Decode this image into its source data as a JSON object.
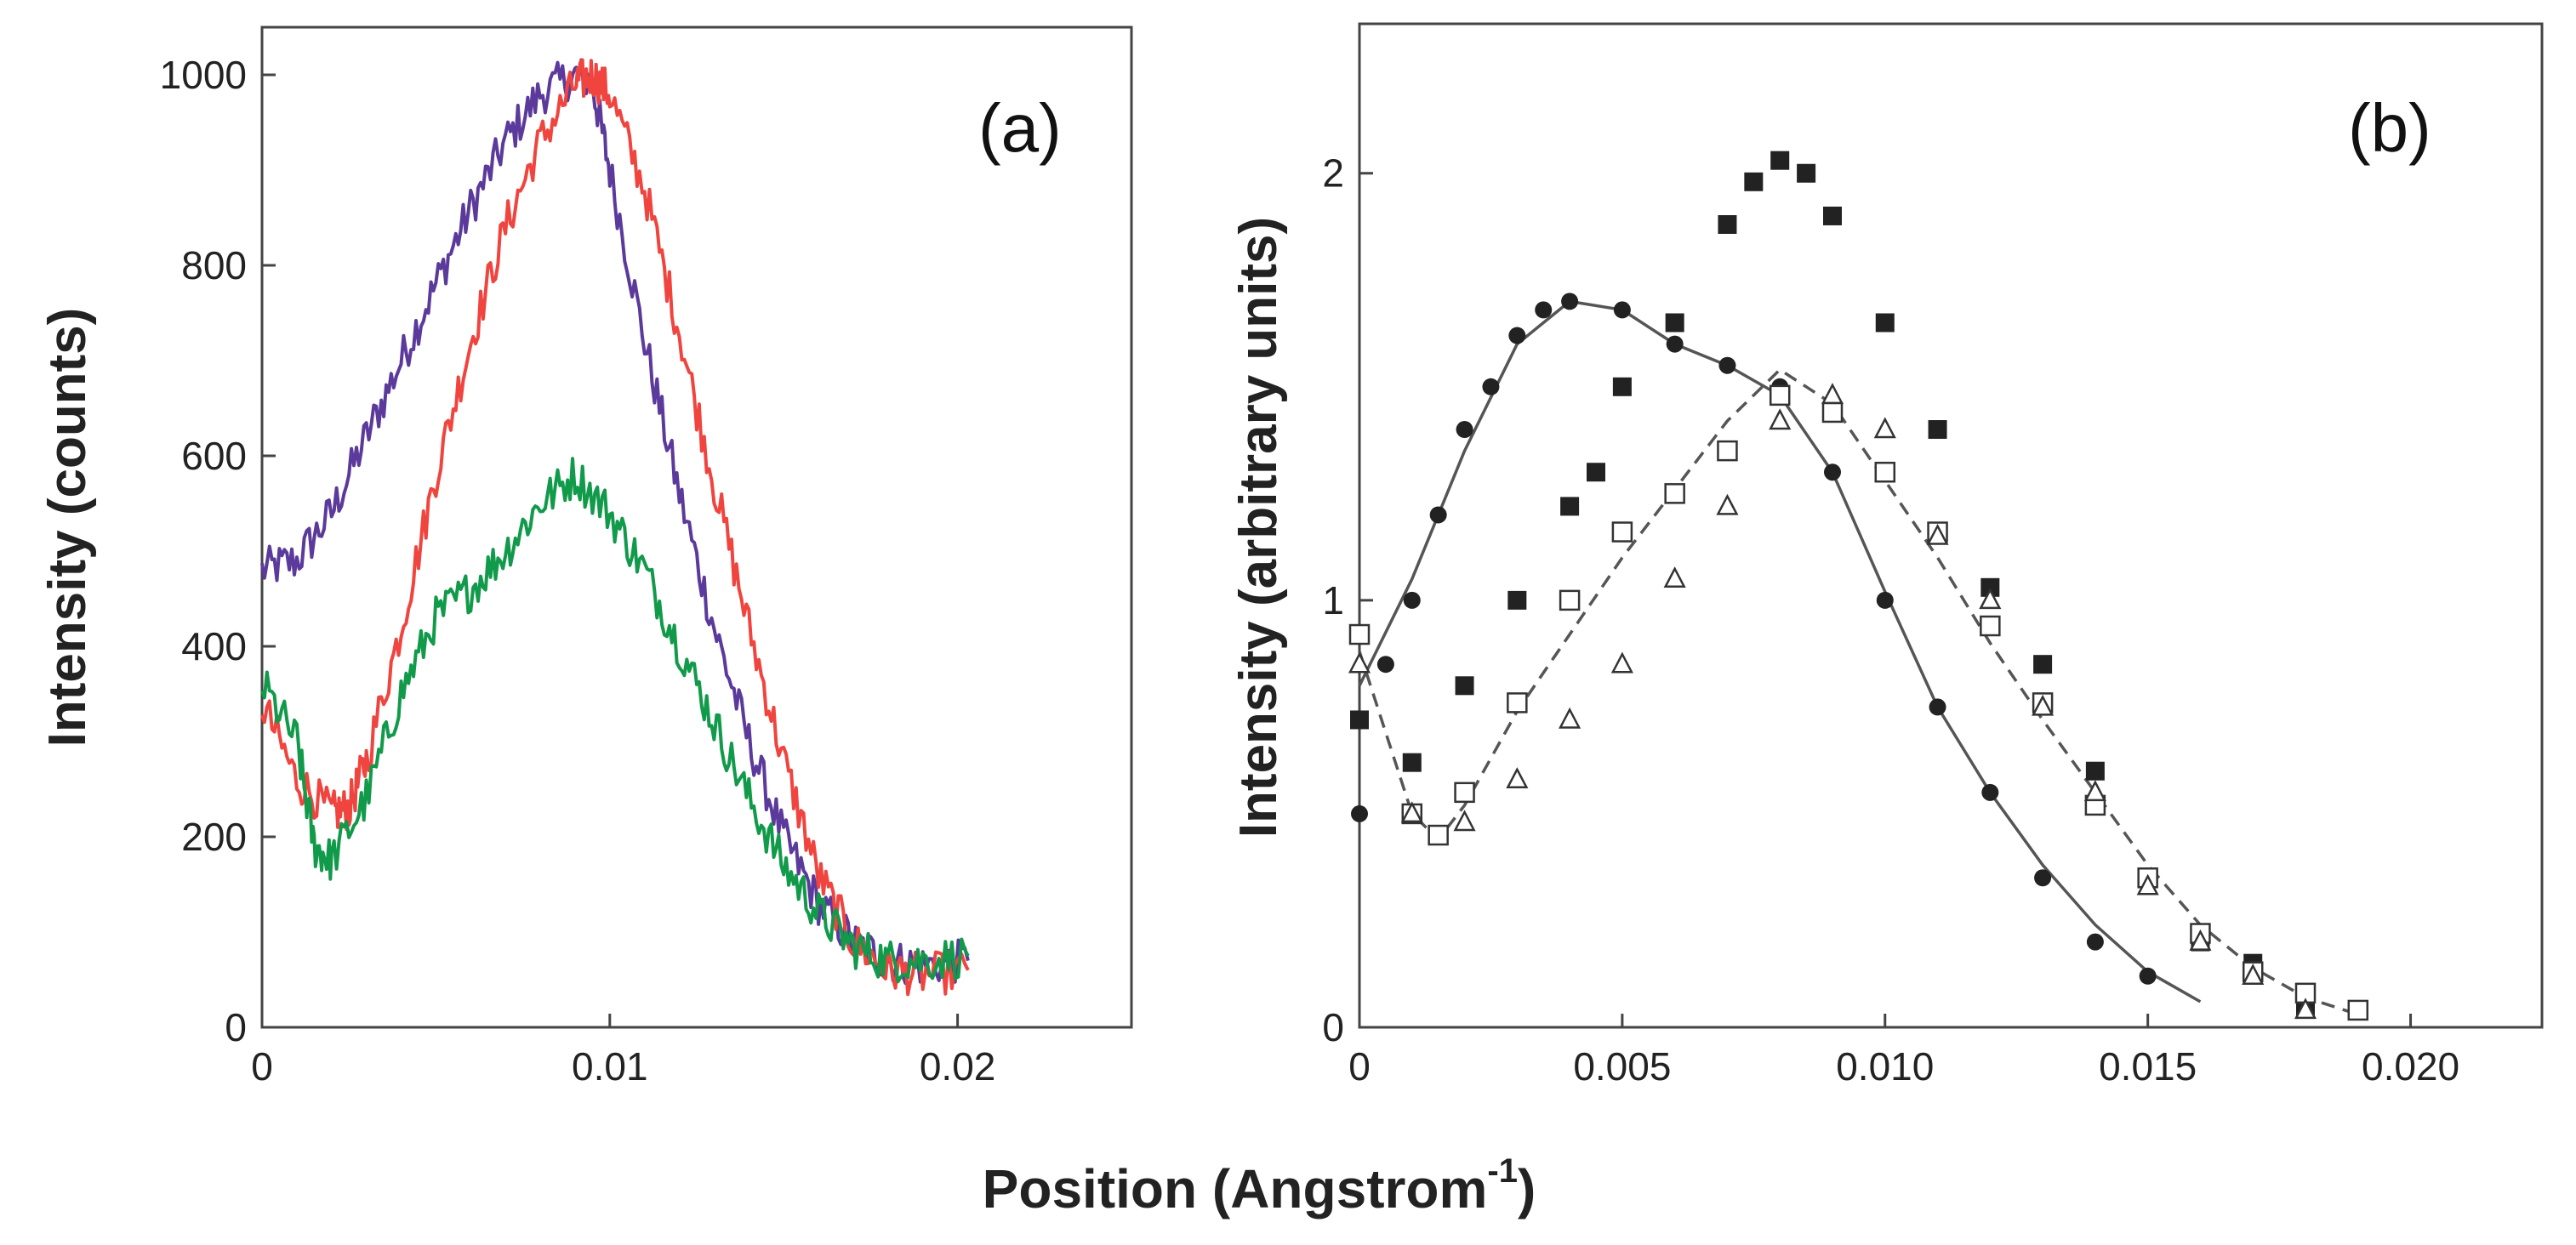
{
  "shared_xlabel": "Position (Angstrom",
  "shared_xlabel_sup": "-1",
  "shared_xlabel_close": ")",
  "chart_data": [
    {
      "type": "line",
      "panel_label": "(a)",
      "ylabel": "Intensity (counts)",
      "xlim": [
        0,
        0.025
      ],
      "ylim": [
        0,
        1050
      ],
      "xticks": [
        0,
        0.01,
        0.02
      ],
      "xtick_labels": [
        "0",
        "0.01",
        "0.02"
      ],
      "yticks": [
        0,
        200,
        400,
        600,
        800,
        1000
      ],
      "ytick_labels": [
        "0",
        "200",
        "400",
        "600",
        "800",
        "1000"
      ],
      "series": [
        {
          "name": "purple",
          "color": "#5b3a9b",
          "x": [
            0,
            0.001,
            0.002,
            0.003,
            0.004,
            0.005,
            0.006,
            0.007,
            0.008,
            0.009,
            0.0095,
            0.01,
            0.011,
            0.012,
            0.013,
            0.014,
            0.015,
            0.016,
            0.017,
            0.018,
            0.019,
            0.0203
          ],
          "y": [
            480,
            490,
            540,
            620,
            700,
            780,
            860,
            930,
            980,
            1000,
            990,
            900,
            720,
            560,
            420,
            300,
            200,
            130,
            90,
            70,
            65,
            70
          ]
        },
        {
          "name": "red",
          "color": "#f0443f",
          "x": [
            0,
            0.001,
            0.002,
            0.0025,
            0.003,
            0.004,
            0.005,
            0.006,
            0.007,
            0.008,
            0.009,
            0.0095,
            0.01,
            0.011,
            0.012,
            0.013,
            0.014,
            0.015,
            0.016,
            0.017,
            0.018,
            0.019,
            0.0203
          ],
          "y": [
            340,
            260,
            225,
            230,
            280,
            420,
            580,
            720,
            840,
            930,
            990,
            1000,
            980,
            880,
            730,
            570,
            420,
            280,
            160,
            90,
            60,
            55,
            60
          ]
        },
        {
          "name": "green",
          "color": "#119a4a",
          "x": [
            0,
            0.001,
            0.0015,
            0.002,
            0.003,
            0.004,
            0.005,
            0.006,
            0.007,
            0.008,
            0.009,
            0.01,
            0.011,
            0.012,
            0.013,
            0.014,
            0.015,
            0.016,
            0.017,
            0.018,
            0.019,
            0.0203
          ],
          "y": [
            360,
            300,
            190,
            175,
            240,
            350,
            430,
            460,
            500,
            550,
            580,
            540,
            480,
            400,
            320,
            240,
            170,
            120,
            85,
            70,
            70,
            75
          ]
        }
      ]
    },
    {
      "type": "scatter",
      "panel_label": "(b)",
      "ylabel": "Intensity (arbitrary units)",
      "xlim": [
        0,
        0.0225
      ],
      "ylim": [
        0,
        2.35
      ],
      "xticks": [
        0,
        0.005,
        0.01,
        0.015,
        0.02
      ],
      "xtick_labels": [
        "0",
        "0.005",
        "0.010",
        "0.015",
        "0.020"
      ],
      "yticks": [
        0,
        1,
        2
      ],
      "ytick_labels": [
        "0",
        "1",
        "2"
      ],
      "series": [
        {
          "name": "filled-circles",
          "marker": "filled-circle",
          "x": [
            0,
            0.0005,
            0.001,
            0.0015,
            0.002,
            0.0025,
            0.003,
            0.0035,
            0.004,
            0.005,
            0.006,
            0.007,
            0.008,
            0.009,
            0.01,
            0.011,
            0.012,
            0.013,
            0.014,
            0.015
          ],
          "y": [
            0.5,
            0.85,
            1.0,
            1.2,
            1.4,
            1.5,
            1.62,
            1.68,
            1.7,
            1.68,
            1.6,
            1.55,
            1.5,
            1.3,
            1.0,
            0.75,
            0.55,
            0.35,
            0.2,
            0.12
          ]
        },
        {
          "name": "filled-squares",
          "marker": "filled-square",
          "x": [
            0,
            0.001,
            0.002,
            0.003,
            0.004,
            0.0045,
            0.005,
            0.006,
            0.007,
            0.0075,
            0.008,
            0.0085,
            0.009,
            0.01,
            0.011,
            0.012,
            0.013,
            0.014,
            0.015,
            0.016,
            0.017,
            0.018
          ],
          "y": [
            0.72,
            0.62,
            0.8,
            1.0,
            1.22,
            1.3,
            1.5,
            1.65,
            1.88,
            1.98,
            2.03,
            2.0,
            1.9,
            1.65,
            1.4,
            1.03,
            0.85,
            0.6,
            0.35,
            0.2,
            0.15,
            0.05
          ]
        },
        {
          "name": "open-squares",
          "marker": "open-square",
          "x": [
            0,
            0.001,
            0.0015,
            0.002,
            0.003,
            0.004,
            0.005,
            0.006,
            0.007,
            0.008,
            0.009,
            0.01,
            0.011,
            0.012,
            0.013,
            0.014,
            0.015,
            0.016,
            0.017,
            0.018,
            0.019
          ],
          "y": [
            0.92,
            0.5,
            0.45,
            0.55,
            0.76,
            1.0,
            1.16,
            1.25,
            1.35,
            1.48,
            1.44,
            1.3,
            1.16,
            0.94,
            0.76,
            0.52,
            0.35,
            0.22,
            0.13,
            0.08,
            0.04
          ]
        },
        {
          "name": "open-triangles",
          "marker": "open-triangle",
          "x": [
            0,
            0.001,
            0.002,
            0.003,
            0.004,
            0.005,
            0.006,
            0.007,
            0.008,
            0.009,
            0.01,
            0.011,
            0.012,
            0.013,
            0.014,
            0.015,
            0.016,
            0.017,
            0.018
          ],
          "y": [
            0.85,
            0.5,
            0.48,
            0.58,
            0.72,
            0.85,
            1.05,
            1.22,
            1.42,
            1.48,
            1.4,
            1.15,
            1.0,
            0.75,
            0.55,
            0.33,
            0.2,
            0.12,
            0.04
          ]
        },
        {
          "name": "solid-fit",
          "marker": "line-solid",
          "x": [
            0,
            0.001,
            0.002,
            0.003,
            0.004,
            0.005,
            0.006,
            0.007,
            0.008,
            0.009,
            0.01,
            0.011,
            0.012,
            0.013,
            0.014,
            0.015,
            0.016
          ],
          "y": [
            0.8,
            1.05,
            1.35,
            1.6,
            1.7,
            1.68,
            1.6,
            1.55,
            1.48,
            1.3,
            1.02,
            0.75,
            0.55,
            0.38,
            0.24,
            0.13,
            0.06
          ]
        },
        {
          "name": "dashed-fit",
          "marker": "line-dashed",
          "x": [
            0,
            0.001,
            0.0015,
            0.002,
            0.003,
            0.004,
            0.005,
            0.006,
            0.007,
            0.008,
            0.009,
            0.01,
            0.011,
            0.012,
            0.013,
            0.014,
            0.015,
            0.016,
            0.017,
            0.018,
            0.019
          ],
          "y": [
            0.88,
            0.5,
            0.44,
            0.52,
            0.74,
            0.92,
            1.1,
            1.26,
            1.42,
            1.54,
            1.46,
            1.28,
            1.1,
            0.9,
            0.72,
            0.55,
            0.38,
            0.24,
            0.14,
            0.07,
            0.03
          ]
        }
      ]
    }
  ]
}
